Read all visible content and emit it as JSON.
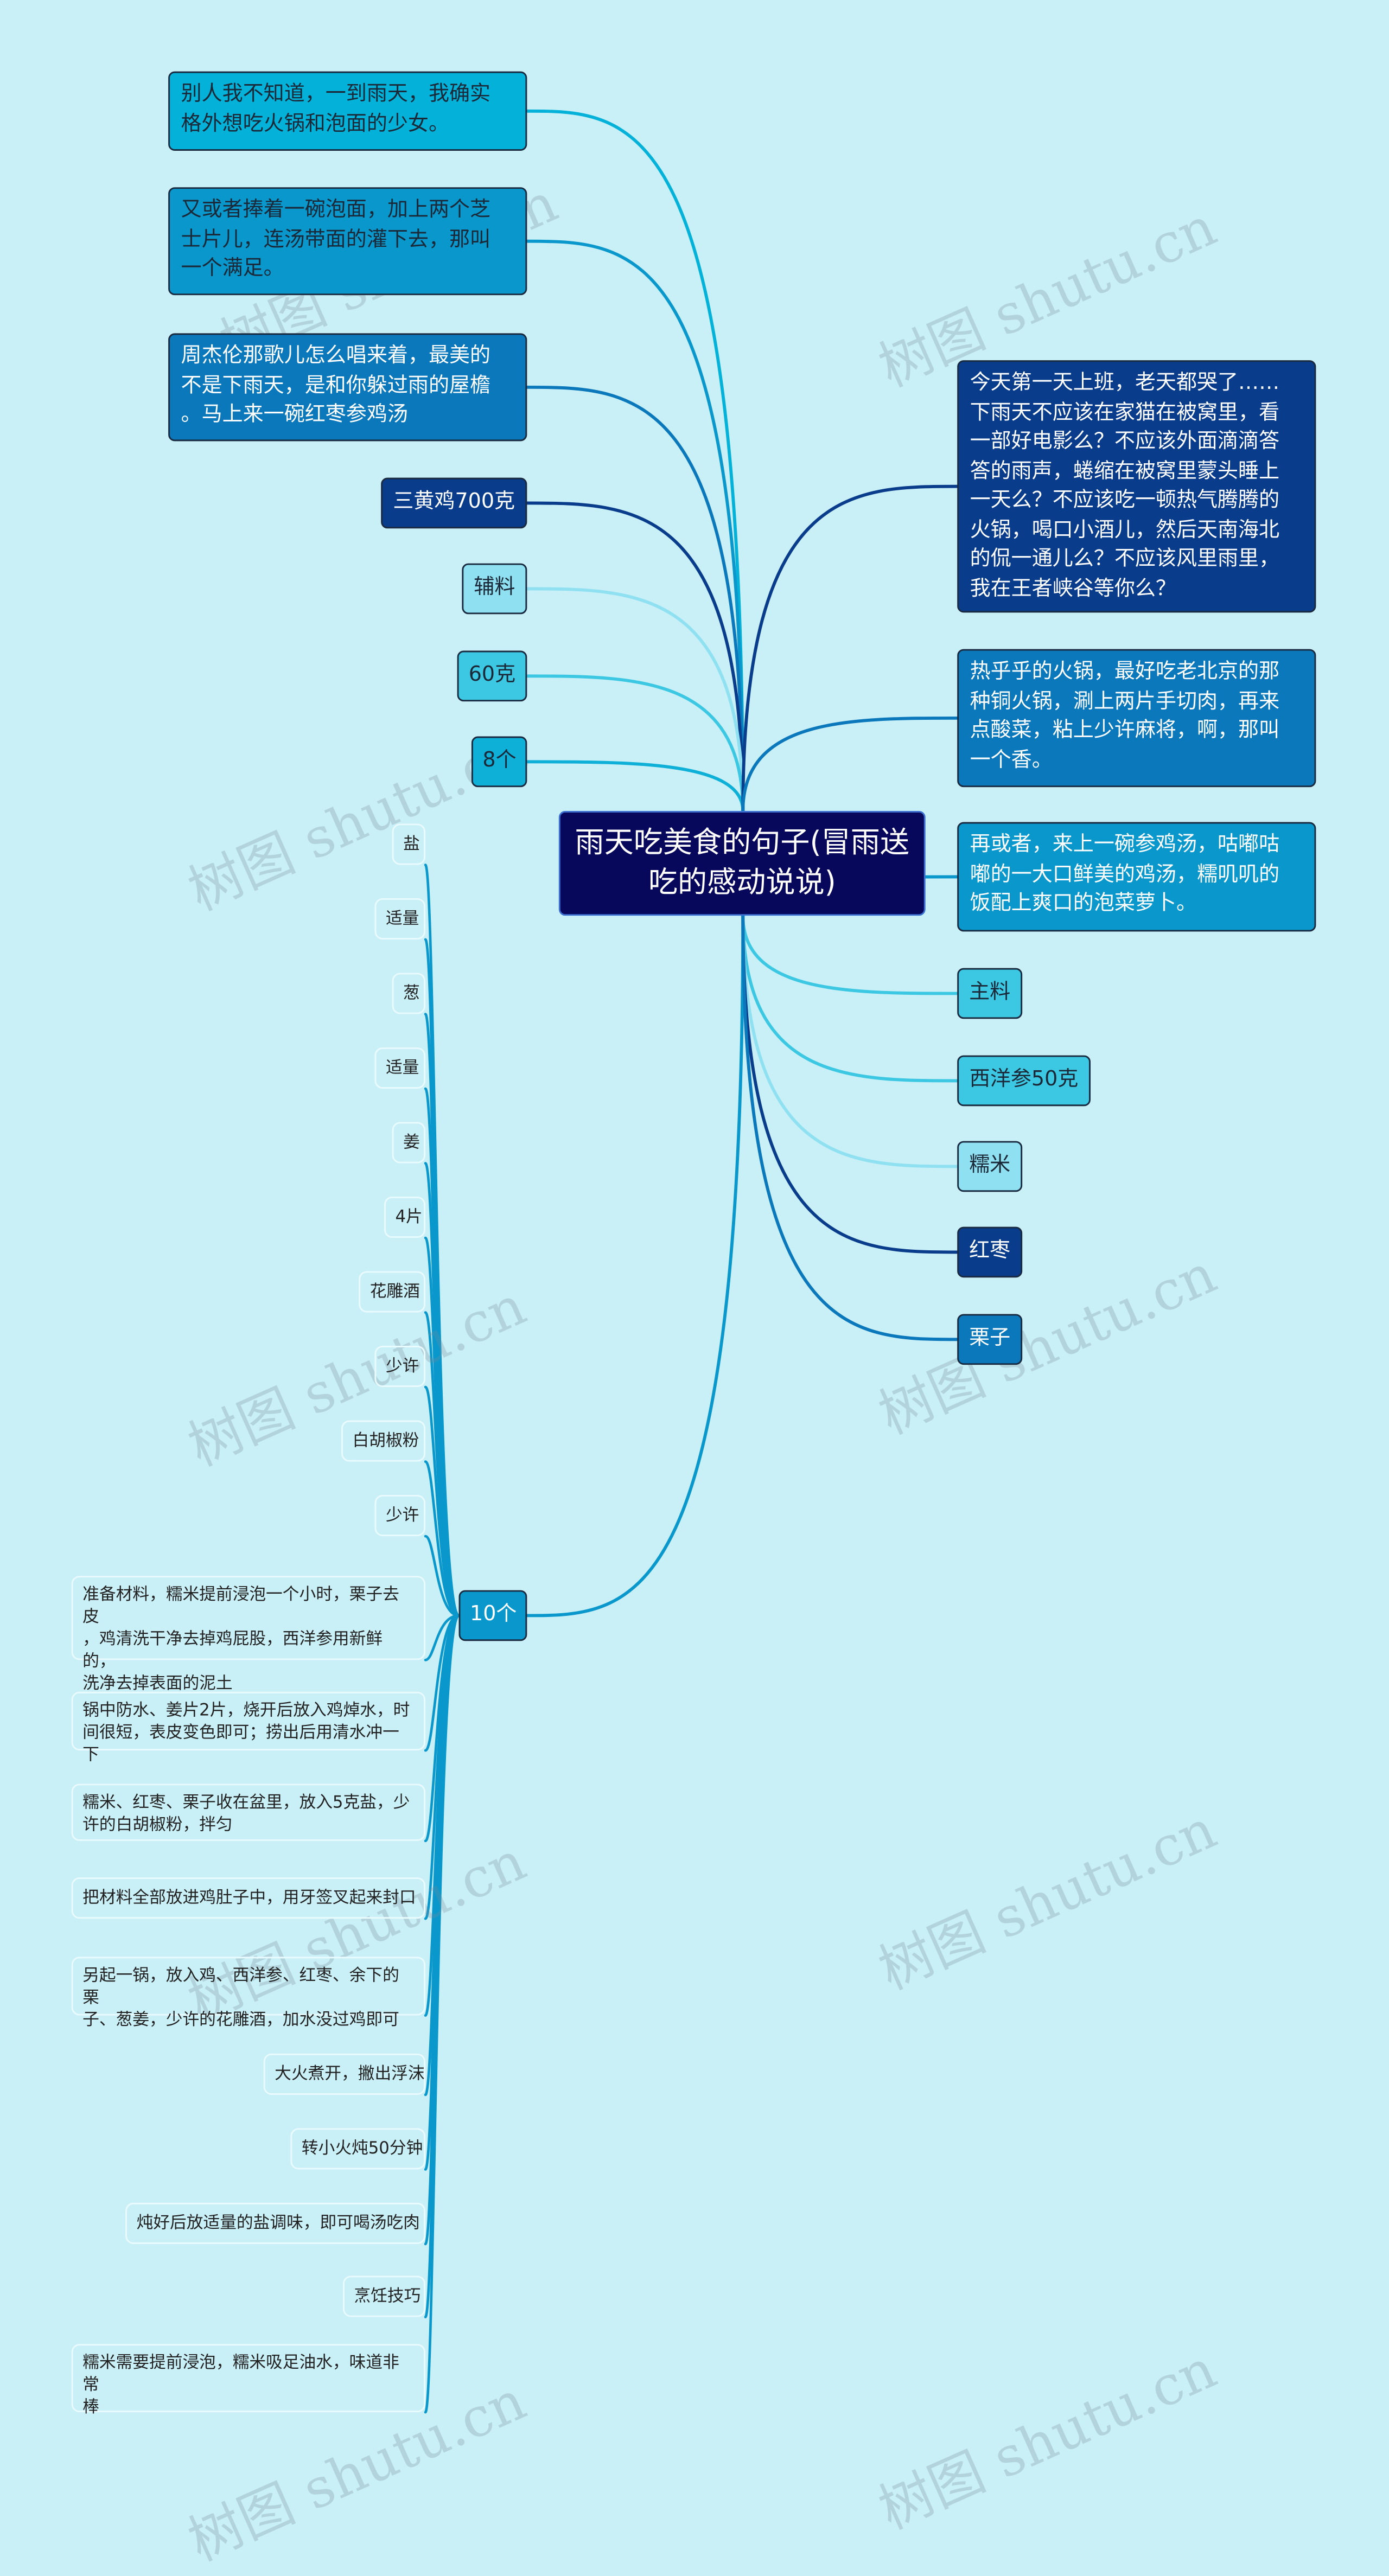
{
  "root": {
    "title": "雨天吃美食的句子(冒雨送\n吃的感动说说)"
  },
  "left_nodes": [
    {
      "text": "别人我不知道，一到雨天，我确实\n格外想吃火锅和泡面的少女。",
      "color": "#04b2d9"
    },
    {
      "text": "又或者捧着一碗泡面，加上两个芝\n士片儿，连汤带面的灌下去，那叫\n一个满足。",
      "color": "#0a98cc"
    },
    {
      "text": "周杰伦那歌儿怎么唱来着，最美的\n不是下雨天，是和你躲过雨的屋檐\n。马上来一碗红枣参鸡汤",
      "color": "#0a78bb"
    },
    {
      "text": "三黄鸡700克",
      "color": "#0a3c8c"
    },
    {
      "text": "辅料",
      "color": "#8fe1f1"
    },
    {
      "text": "60克",
      "color": "#3cc8e2"
    },
    {
      "text": "8个",
      "color": "#0eb0d8"
    },
    {
      "text": "10个",
      "color": "#0a98cc"
    }
  ],
  "right_nodes": [
    {
      "text": "今天第一天上班，老天都哭了……\n下雨天不应该在家猫在被窝里，看\n一部好电影么？不应该外面滴滴答\n答的雨声，蜷缩在被窝里蒙头睡上\n一天么？不应该吃一顿热气腾腾的\n火锅，喝口小酒儿，然后天南海北\n的侃一通儿么？不应该风里雨里，\n我在王者峡谷等你么？",
      "color": "#0a3c8c"
    },
    {
      "text": "热乎乎的火锅，最好吃老北京的那\n种铜火锅，涮上两片手切肉，再来\n点酸菜，粘上少许麻将，啊，那叫\n一个香。",
      "color": "#0a78bb"
    },
    {
      "text": "再或者，来上一碗参鸡汤，咕嘟咕\n嘟的一大口鲜美的鸡汤，糯叽叽的\n饭配上爽口的泡菜萝卜。",
      "color": "#0a98cc"
    },
    {
      "text": "主料",
      "color": "#3cc8e2"
    },
    {
      "text": "西洋参50克",
      "color": "#3cc8e2"
    },
    {
      "text": "糯米",
      "color": "#8fe1f1"
    },
    {
      "text": "红枣",
      "color": "#0a3c8c"
    },
    {
      "text": "栗子",
      "color": "#0a78bb"
    }
  ],
  "leaves": [
    "盐",
    "适量",
    "葱",
    "适量",
    "姜",
    "4片",
    "花雕酒",
    "少许",
    "白胡椒粉",
    "少许",
    "准备材料，糯米提前浸泡一个小时，栗子去皮\n，鸡清洗干净去掉鸡屁股，西洋参用新鲜的，\n洗净去掉表面的泥土",
    "锅中防水、姜片2片，烧开后放入鸡焯水，时\n间很短，表皮变色即可；捞出后用清水冲一下",
    "糯米、红枣、栗子收在盆里，放入5克盐，少\n许的白胡椒粉，拌匀",
    "把材料全部放进鸡肚子中，用牙签叉起来封口",
    "另起一锅，放入鸡、西洋参、红枣、余下的栗\n子、葱姜，少许的花雕酒，加水没过鸡即可",
    "大火煮开，撇出浮沫",
    "转小火炖50分钟",
    "炖好后放适量的盐调味，即可喝汤吃肉",
    "烹饪技巧",
    "糯米需要提前浸泡，糯米吸足油水，味道非常\n棒"
  ],
  "leaf_line_color": "#0a98cc",
  "watermark": "树图 shutu.cn"
}
